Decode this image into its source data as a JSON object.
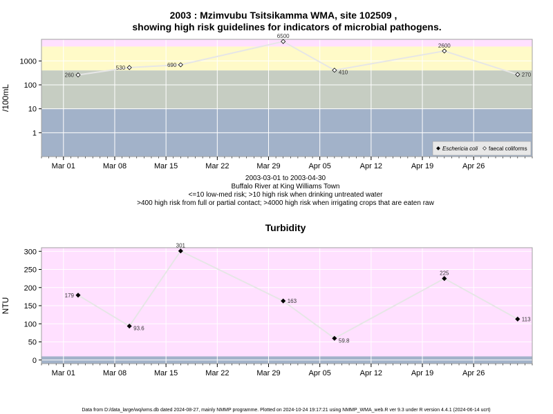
{
  "page": {
    "title_line1": "2003 : Mzimvubu Tsitsikamma WMA, site 102509 ,",
    "title_line2": "showing high risk guidelines for indicators of microbial pathogens.",
    "sub1": "2003-03-01 to 2003-04-30",
    "sub2": "Buffalo River at King Williams Town",
    "sub3": "<=10 low-med risk; >10 high risk when drinking untreated water",
    "sub4": ">400 high risk from full or partial contact; >4000 high risk when irrigating crops that are eaten raw",
    "turbidity_title": "Turbidity",
    "footer": "Data from D:/data_large/wq/wms.db dated 2024-08-27, mainly NMMP programme. Plotted on 2024-10-24 19:17:21 using NMMP_WMA_web.R ver 9.3 under R version 4.4.1 (2024-06-14 ucrt)"
  },
  "colors": {
    "band_top": "#ffe0ff",
    "band_yellow": "#fffac8",
    "band_grey": "#c6cdc2",
    "band_blue": "#a2b2c9",
    "line": "#e6e6e6",
    "grid": "#ffffff",
    "point": "#000000"
  },
  "chart_data": [
    {
      "type": "line",
      "title": "",
      "ylabel": "/100mL",
      "y_scale": "log10",
      "ylim": [
        0.1,
        8000
      ],
      "y_ticks": [
        1,
        10,
        100,
        1000
      ],
      "y_tick_labels": [
        "1",
        "10",
        "100",
        "1000"
      ],
      "xlim": [
        "2003-02-26",
        "2003-05-04"
      ],
      "x_ticks": [
        "2003-03-01",
        "2003-03-08",
        "2003-03-15",
        "2003-03-22",
        "2003-03-29",
        "2003-04-05",
        "2003-04-12",
        "2003-04-19",
        "2003-04-26"
      ],
      "x_tick_labels": [
        "Mar 01",
        "Mar 08",
        "Mar 15",
        "Mar 22",
        "Mar 29",
        "Apr 05",
        "Apr 12",
        "Apr 19",
        "Apr 26"
      ],
      "risk_bands": [
        10,
        400,
        4000
      ],
      "grid": true,
      "legend_position": "bottom-right",
      "legend": [
        "Eschericia coli",
        "faecal coliforms"
      ],
      "series": [
        {
          "name": "faecal coliforms",
          "marker": "open-diamond",
          "x": [
            "2003-03-03",
            "2003-03-10",
            "2003-03-17",
            "2003-03-31",
            "2003-04-07",
            "2003-04-22",
            "2003-05-02"
          ],
          "values": [
            260,
            530,
            690,
            6500,
            410,
            2600,
            270
          ],
          "labels": [
            "260",
            "530",
            "690",
            "6500",
            "410",
            "2600",
            "270"
          ]
        }
      ]
    },
    {
      "type": "line",
      "title": "Turbidity",
      "ylabel": "NTU",
      "ylim": [
        -10,
        310
      ],
      "y_ticks": [
        0,
        50,
        100,
        150,
        200,
        250,
        300
      ],
      "y_tick_labels": [
        "0",
        "50",
        "100",
        "150",
        "200",
        "250",
        "300"
      ],
      "xlim": [
        "2003-02-26",
        "2003-05-04"
      ],
      "x_ticks": [
        "2003-03-01",
        "2003-03-08",
        "2003-03-15",
        "2003-03-22",
        "2003-03-29",
        "2003-04-05",
        "2003-04-12",
        "2003-04-19",
        "2003-04-26"
      ],
      "x_tick_labels": [
        "Mar 01",
        "Mar 08",
        "Mar 15",
        "Mar 22",
        "Mar 29",
        "Apr 05",
        "Apr 12",
        "Apr 19",
        "Apr 26"
      ],
      "grid": true,
      "series": [
        {
          "marker": "filled-diamond",
          "x": [
            "2003-03-03",
            "2003-03-10",
            "2003-03-17",
            "2003-03-31",
            "2003-04-07",
            "2003-04-22",
            "2003-05-02"
          ],
          "values": [
            179,
            93.6,
            301,
            163,
            59.8,
            225,
            113
          ],
          "labels": [
            "179",
            "93.6",
            "301",
            "163",
            "59.8",
            "225",
            "113"
          ]
        }
      ]
    }
  ]
}
